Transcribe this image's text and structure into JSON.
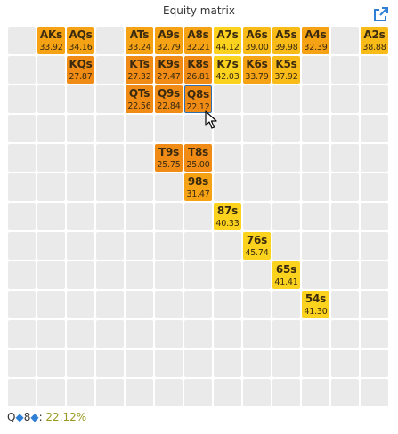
{
  "title": "Equity matrix",
  "icons": {
    "popout": "popout-icon",
    "cursor": "mouse-cursor-icon",
    "suit": "diamond-icon"
  },
  "colors": {
    "empty": "#eaeaea",
    "equity_scale": [
      "#f08c16",
      "#f5a214",
      "#f9bb18",
      "#fbd21e"
    ],
    "accent": "#2f7fd6",
    "selected_border": "#2f6fb0"
  },
  "matrix": {
    "ranks": [
      "A",
      "K",
      "Q",
      "J",
      "T",
      "9",
      "8",
      "7",
      "6",
      "5",
      "4",
      "3",
      "2"
    ],
    "cells": [
      {
        "hand": "AKs",
        "equity": "33.92",
        "row": 0,
        "col": 1
      },
      {
        "hand": "AQs",
        "equity": "34.16",
        "row": 0,
        "col": 2
      },
      {
        "hand": "ATs",
        "equity": "33.24",
        "row": 0,
        "col": 4
      },
      {
        "hand": "A9s",
        "equity": "32.79",
        "row": 0,
        "col": 5
      },
      {
        "hand": "A8s",
        "equity": "32.21",
        "row": 0,
        "col": 6
      },
      {
        "hand": "A7s",
        "equity": "44.12",
        "row": 0,
        "col": 7
      },
      {
        "hand": "A6s",
        "equity": "39.00",
        "row": 0,
        "col": 8
      },
      {
        "hand": "A5s",
        "equity": "39.98",
        "row": 0,
        "col": 9
      },
      {
        "hand": "A4s",
        "equity": "32.39",
        "row": 0,
        "col": 10
      },
      {
        "hand": "A2s",
        "equity": "38.88",
        "row": 0,
        "col": 12
      },
      {
        "hand": "KQs",
        "equity": "27.87",
        "row": 1,
        "col": 2
      },
      {
        "hand": "KTs",
        "equity": "27.32",
        "row": 1,
        "col": 4
      },
      {
        "hand": "K9s",
        "equity": "27.47",
        "row": 1,
        "col": 5
      },
      {
        "hand": "K8s",
        "equity": "26.81",
        "row": 1,
        "col": 6
      },
      {
        "hand": "K7s",
        "equity": "42.03",
        "row": 1,
        "col": 7
      },
      {
        "hand": "K6s",
        "equity": "33.79",
        "row": 1,
        "col": 8
      },
      {
        "hand": "K5s",
        "equity": "37.92",
        "row": 1,
        "col": 9
      },
      {
        "hand": "QTs",
        "equity": "22.56",
        "row": 2,
        "col": 4
      },
      {
        "hand": "Q9s",
        "equity": "22.84",
        "row": 2,
        "col": 5
      },
      {
        "hand": "Q8s",
        "equity": "22.12",
        "row": 2,
        "col": 6,
        "selected": true
      },
      {
        "hand": "T9s",
        "equity": "25.75",
        "row": 4,
        "col": 5
      },
      {
        "hand": "T8s",
        "equity": "25.00",
        "row": 4,
        "col": 6
      },
      {
        "hand": "98s",
        "equity": "31.47",
        "row": 5,
        "col": 6
      },
      {
        "hand": "87s",
        "equity": "40.33",
        "row": 6,
        "col": 7
      },
      {
        "hand": "76s",
        "equity": "45.74",
        "row": 7,
        "col": 8
      },
      {
        "hand": "65s",
        "equity": "41.41",
        "row": 8,
        "col": 9
      },
      {
        "hand": "54s",
        "equity": "41.30",
        "row": 9,
        "col": 10
      }
    ]
  },
  "footer": {
    "card1_rank": "Q",
    "card1_suit": "◆",
    "card2_rank": "8",
    "card2_suit": "◆",
    "separator": ": ",
    "equity": "22.12%"
  }
}
